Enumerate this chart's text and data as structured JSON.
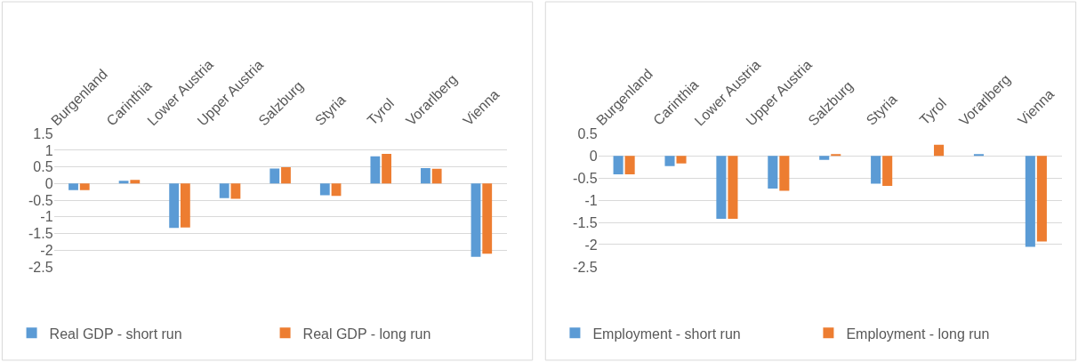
{
  "chart_data": [
    {
      "type": "bar",
      "categories": [
        "Burgenland",
        "Carinthia",
        "Lower Austria",
        "Upper Austria",
        "Salzburg",
        "Styria",
        "Tyrol",
        "Vorarlberg",
        "Vienna"
      ],
      "series": [
        {
          "name": "Real GDP - short run",
          "color": "#5b9bd5",
          "values": [
            -0.2,
            0.08,
            -1.33,
            -0.44,
            0.45,
            -0.35,
            0.82,
            0.46,
            -2.2
          ]
        },
        {
          "name": "Real GDP - long run",
          "color": "#ed7d31",
          "values": [
            -0.2,
            0.11,
            -1.32,
            -0.46,
            0.49,
            -0.37,
            0.89,
            0.44,
            -2.11
          ]
        }
      ],
      "ylim": [
        -2.5,
        1.5
      ],
      "yticks": [
        1.5,
        1,
        0.5,
        0,
        -0.5,
        -1,
        -1.5,
        -2,
        -2.5
      ],
      "grid": "y",
      "legend": "bottom"
    },
    {
      "type": "bar",
      "categories": [
        "Burgenland",
        "Carinthia",
        "Lower Austria",
        "Upper Austria",
        "Salzburg",
        "Styria",
        "Tyrol",
        "Vorarlberg",
        "Vienna"
      ],
      "series": [
        {
          "name": "Employment - short run",
          "color": "#5b9bd5",
          "values": [
            -0.42,
            -0.23,
            -1.42,
            -0.74,
            -0.09,
            -0.63,
            null,
            0.02,
            -2.05
          ]
        },
        {
          "name": "Employment - long run",
          "color": "#ed7d31",
          "values": [
            -0.42,
            -0.17,
            -1.42,
            -0.79,
            0.03,
            -0.68,
            0.25,
            null,
            -1.93
          ]
        }
      ],
      "ylim": [
        -2.5,
        0.5
      ],
      "yticks": [
        0.5,
        0,
        -0.5,
        -1,
        -1.5,
        -2,
        -2.5
      ],
      "grid": "y",
      "legend": "bottom"
    }
  ]
}
